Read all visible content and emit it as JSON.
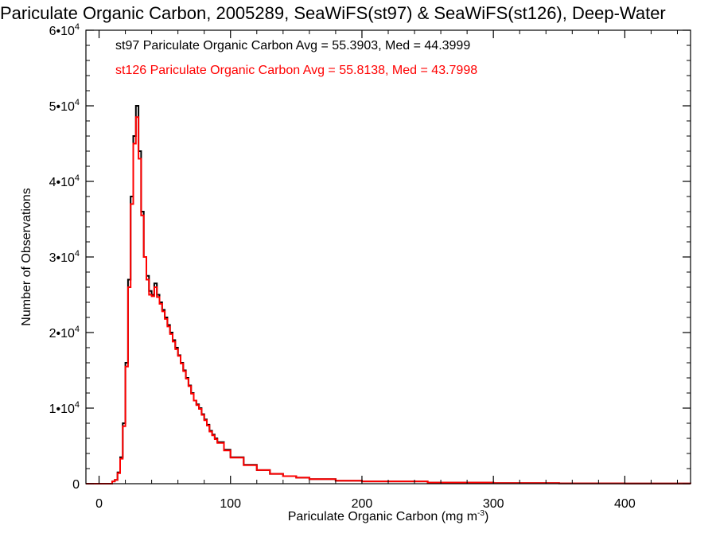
{
  "chart_data": {
    "type": "histogram-step",
    "title": "Pariculate Organic Carbon, 2005289, SeaWiFS(st97) & SeaWiFS(st126), Deep-Water",
    "xlabel": "Pariculate Organic Carbon (mg m",
    "xlabel_exp": "-3",
    "xlabel_close": ")",
    "ylabel": "Number of Observations",
    "xlim": [
      -10,
      450
    ],
    "ylim": [
      0,
      60000
    ],
    "xticks": [
      0,
      100,
      200,
      300,
      400
    ],
    "xtick_labels": [
      "0",
      "100",
      "200",
      "300",
      "400"
    ],
    "yticks": [
      0,
      10000,
      20000,
      30000,
      40000,
      50000,
      60000
    ],
    "ytick_labels": [
      {
        "base": "0",
        "exp": ""
      },
      {
        "base": "1•10",
        "exp": "4"
      },
      {
        "base": "2•10",
        "exp": "4"
      },
      {
        "base": "3•10",
        "exp": "4"
      },
      {
        "base": "4•10",
        "exp": "4"
      },
      {
        "base": "5•10",
        "exp": "4"
      },
      {
        "base": "6•10",
        "exp": "4"
      }
    ],
    "grid": false,
    "legend_position": "top-left",
    "bin_width": 2,
    "series": [
      {
        "name": "st97",
        "color": "#000000",
        "label": "st97 Pariculate Organic Carbon Avg = 55.3903, Med = 44.3999",
        "x": [
          10,
          12,
          14,
          16,
          18,
          20,
          22,
          24,
          26,
          28,
          30,
          32,
          34,
          36,
          38,
          40,
          42,
          44,
          46,
          48,
          50,
          52,
          54,
          56,
          58,
          60,
          62,
          64,
          66,
          68,
          70,
          72,
          74,
          76,
          78,
          80,
          82,
          84,
          86,
          88,
          90,
          95,
          100,
          110,
          120,
          130,
          140,
          150,
          160,
          180,
          200,
          250,
          300,
          350,
          400,
          450
        ],
        "values": [
          300,
          500,
          1500,
          3500,
          8000,
          16000,
          27000,
          38000,
          46000,
          50000,
          44000,
          36000,
          30000,
          27500,
          25500,
          25000,
          26500,
          25000,
          24000,
          23000,
          22000,
          21000,
          20000,
          19000,
          18000,
          17000,
          16000,
          15000,
          14000,
          13000,
          12000,
          11000,
          10500,
          10000,
          9200,
          8500,
          7800,
          7000,
          6500,
          6000,
          5500,
          4500,
          3500,
          2500,
          1800,
          1300,
          1000,
          800,
          600,
          400,
          300,
          150,
          80,
          40,
          20,
          0
        ]
      },
      {
        "name": "st126",
        "color": "#ff0000",
        "label": "st126 Pariculate Organic Carbon Avg = 55.8138, Med = 43.7998",
        "x": [
          10,
          12,
          14,
          16,
          18,
          20,
          22,
          24,
          26,
          28,
          30,
          32,
          34,
          36,
          38,
          40,
          42,
          44,
          46,
          48,
          50,
          52,
          54,
          56,
          58,
          60,
          62,
          64,
          66,
          68,
          70,
          72,
          74,
          76,
          78,
          80,
          82,
          84,
          86,
          88,
          90,
          95,
          100,
          110,
          120,
          130,
          140,
          150,
          160,
          180,
          200,
          250,
          300,
          350,
          400,
          450
        ],
        "values": [
          300,
          500,
          1400,
          3300,
          7600,
          15500,
          26000,
          37000,
          45000,
          48500,
          43000,
          35500,
          30000,
          27000,
          25000,
          24800,
          26000,
          24700,
          23800,
          22800,
          21800,
          20800,
          19800,
          18800,
          17800,
          16900,
          15900,
          14900,
          13900,
          12900,
          11900,
          11000,
          10400,
          9900,
          9100,
          8400,
          7700,
          6900,
          6400,
          5900,
          5400,
          4400,
          3450,
          2450,
          1800,
          1300,
          1000,
          800,
          600,
          400,
          300,
          150,
          80,
          40,
          20,
          0
        ]
      }
    ]
  }
}
